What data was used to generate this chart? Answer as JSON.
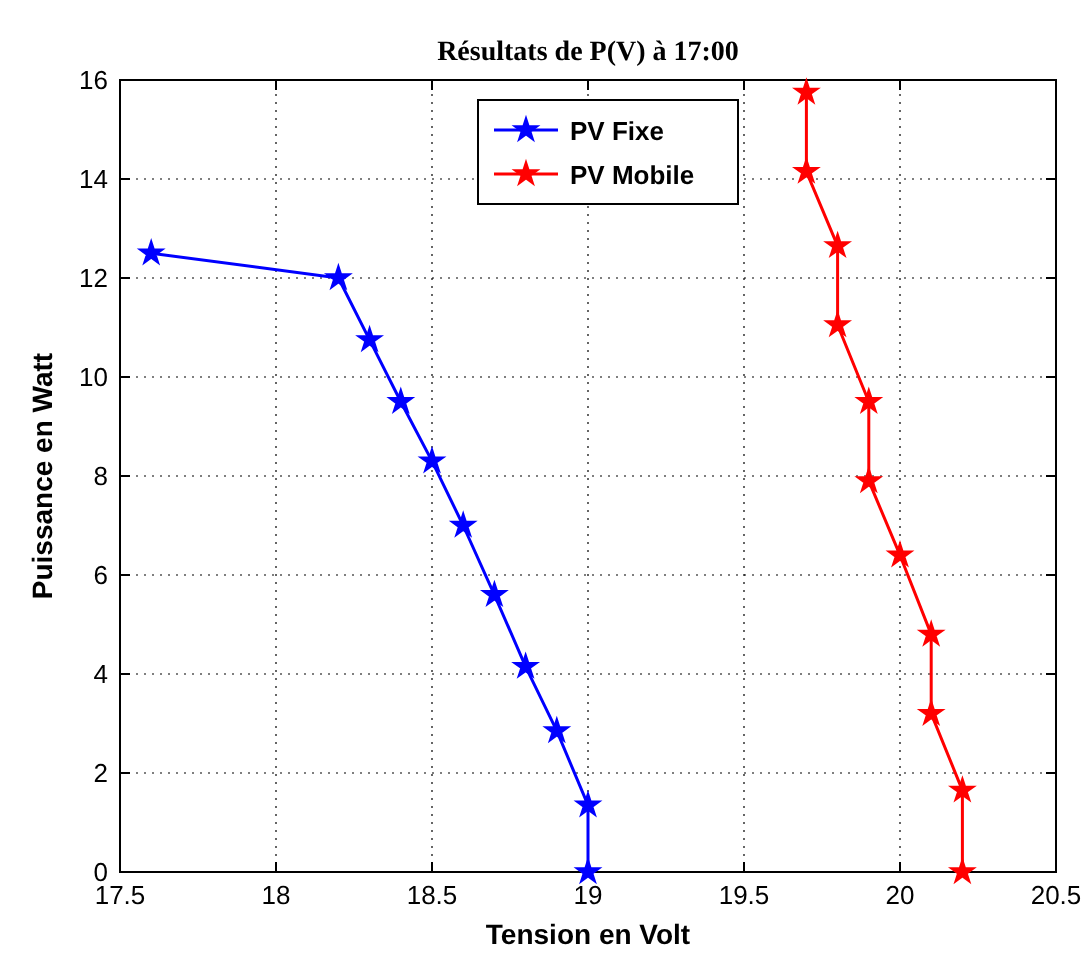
{
  "chart_data": {
    "type": "line",
    "title": "Résultats de P(V) à 17:00",
    "xlabel": "Tension en Volt",
    "ylabel": "Puissance en Watt",
    "xlim": [
      17.5,
      20.5
    ],
    "xticks": [
      17.5,
      18,
      18.5,
      19,
      19.5,
      20,
      20.5
    ],
    "ylim": [
      0,
      16
    ],
    "yticks": [
      0,
      2,
      4,
      6,
      8,
      10,
      12,
      14,
      16
    ],
    "grid": true,
    "legend": "top",
    "marker": "star",
    "line_style": "solid",
    "series": [
      {
        "name": "PV Fixe",
        "color": "#0000ff",
        "x": [
          17.6,
          18.2,
          18.3,
          18.4,
          18.5,
          18.6,
          18.7,
          18.8,
          18.9,
          19.0,
          19.0
        ],
        "values": [
          12.5,
          12.0,
          10.75,
          9.5,
          8.3,
          7.0,
          5.6,
          4.15,
          2.85,
          1.35,
          0
        ]
      },
      {
        "name": "PV Mobile",
        "color": "#ff0000",
        "x": [
          19.7,
          19.7,
          19.8,
          19.8,
          19.9,
          19.9,
          20.0,
          20.1,
          20.1,
          20.2,
          20.2
        ],
        "values": [
          15.75,
          14.15,
          12.65,
          11.05,
          9.5,
          7.9,
          6.4,
          4.8,
          3.2,
          1.65,
          0
        ]
      }
    ]
  }
}
